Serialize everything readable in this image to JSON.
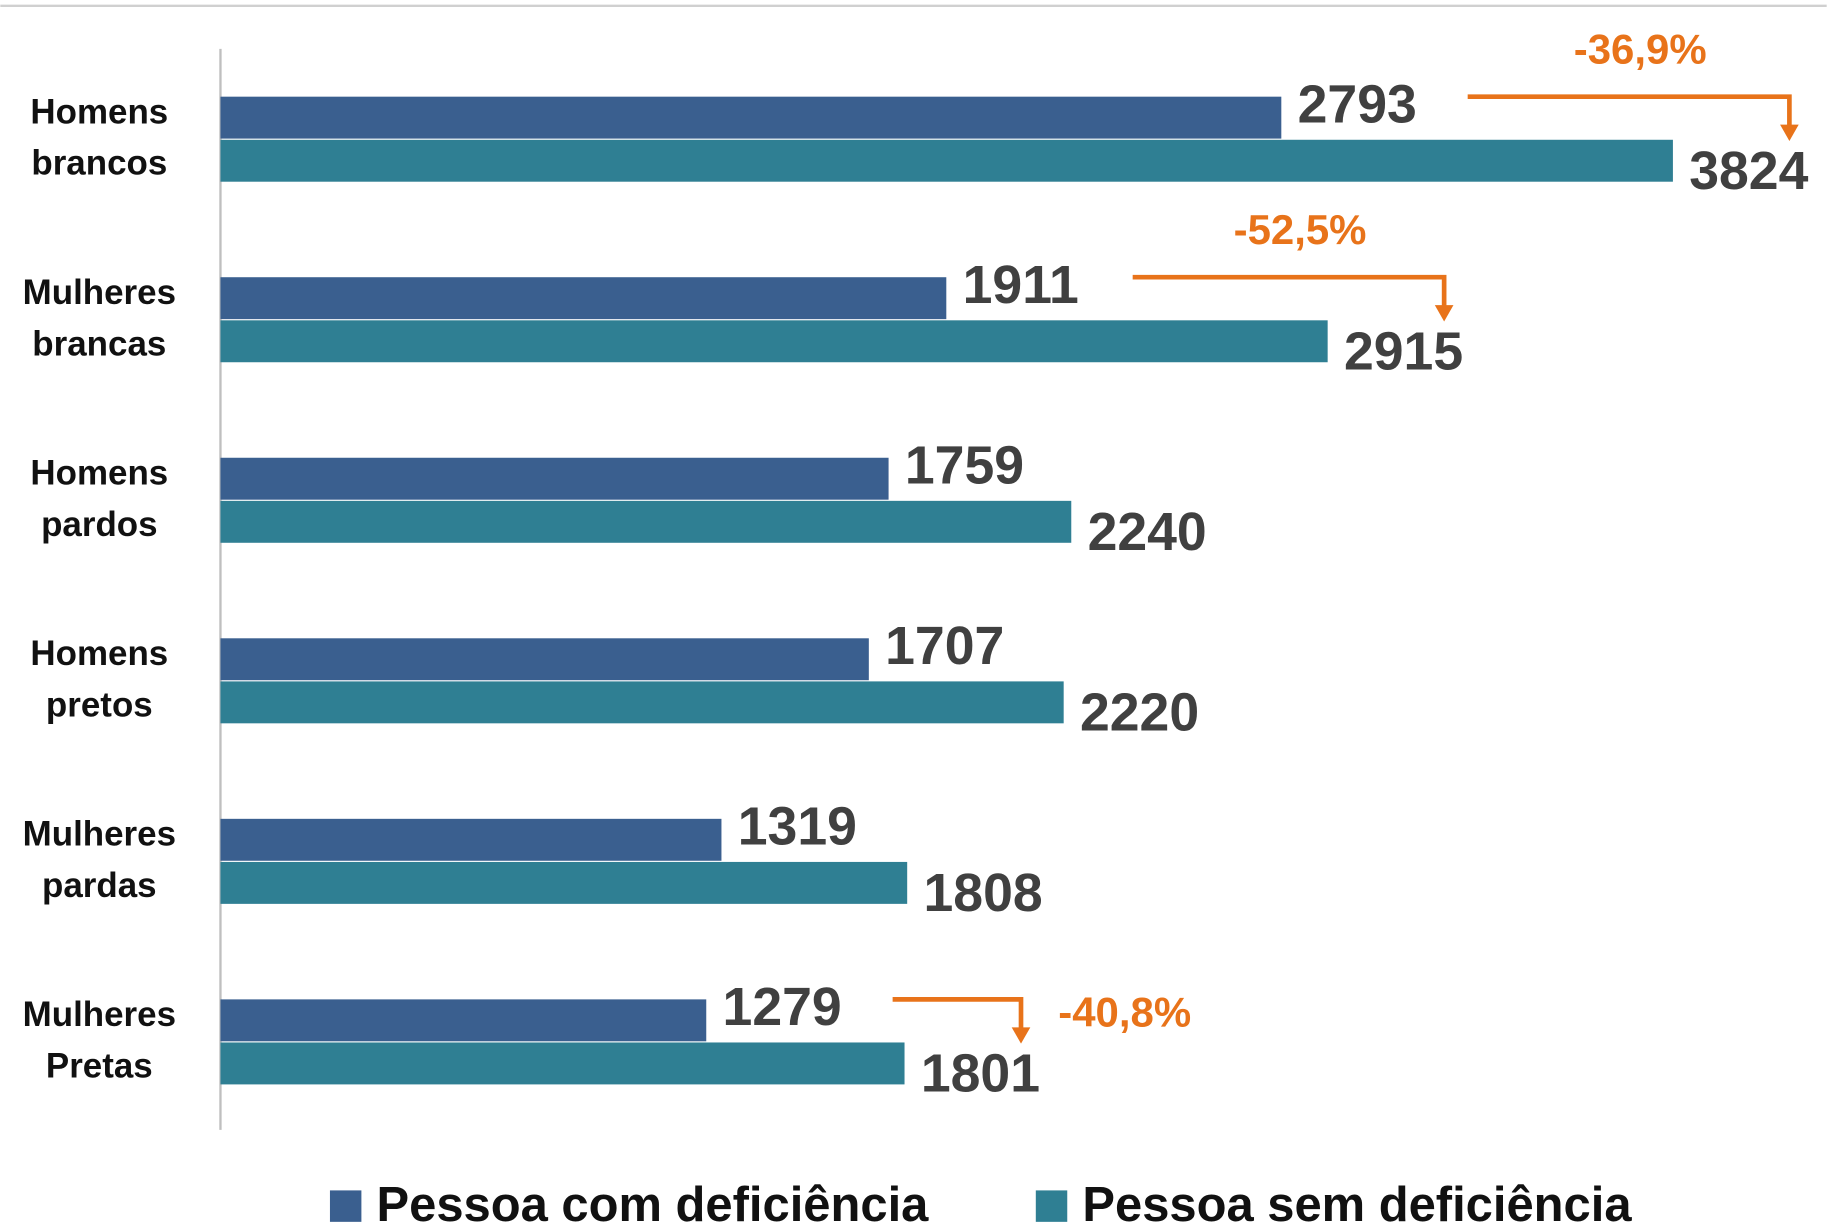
{
  "chart_data": {
    "type": "barh",
    "categories": [
      "Homens brancos",
      "Mulheres brancas",
      "Homens pardos",
      "Homens pretos",
      "Mulheres pardas",
      "Mulheres Pretas"
    ],
    "series": [
      {
        "name": "Pessoa com deficiência",
        "color": "#3a5f8f",
        "values": [
          2793,
          1911,
          1759,
          1707,
          1319,
          1279
        ]
      },
      {
        "name": "Pessoa sem deficiência",
        "color": "#2f7f93",
        "values": [
          3824,
          2915,
          2240,
          2220,
          1808,
          1801
        ]
      }
    ],
    "xlim": [
      0,
      4200
    ],
    "annotations": [
      {
        "text": "-36,9%",
        "category": "Homens brancos"
      },
      {
        "text": "-52,5%",
        "category": "Mulheres brancas"
      },
      {
        "text": "-40,8%",
        "category": "Mulheres Pretas"
      }
    ],
    "annotation_color": "#e8731a",
    "legend": "bottom"
  }
}
